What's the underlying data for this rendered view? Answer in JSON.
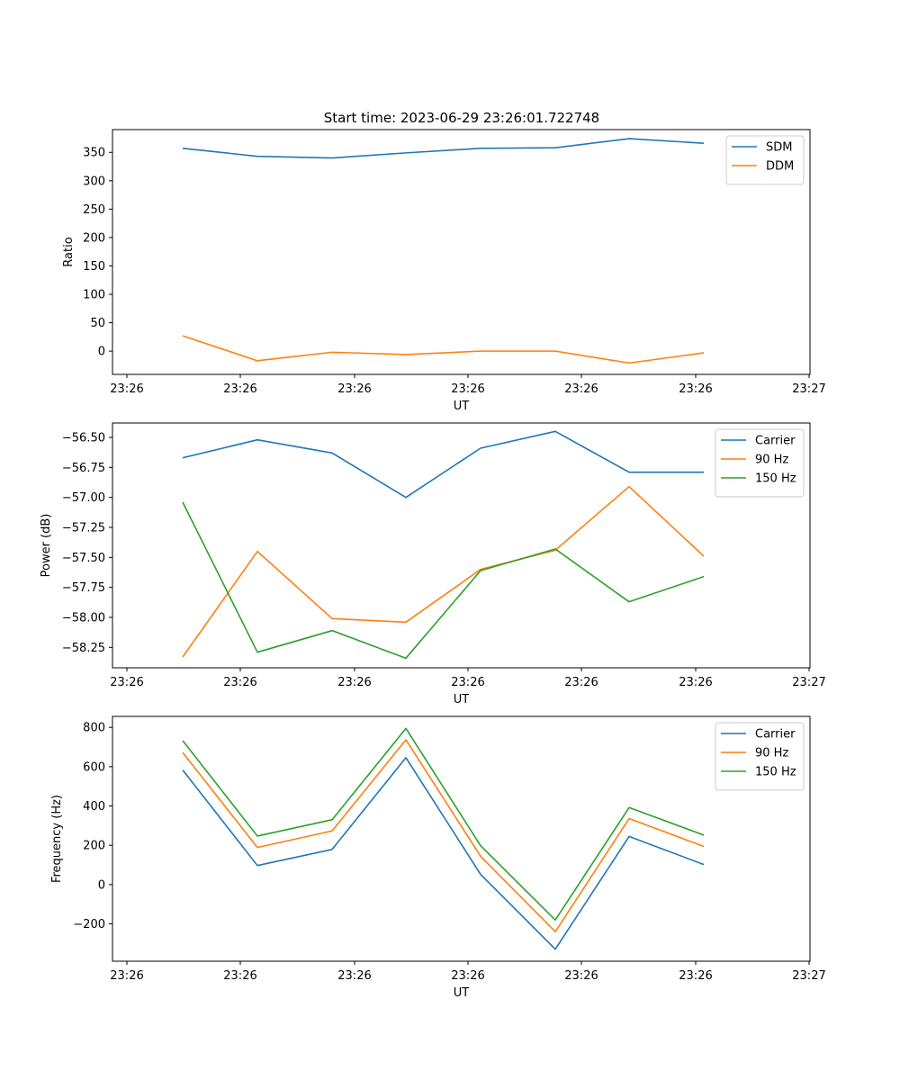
{
  "figure": {
    "title": "Start time: 2023-06-29 23:26:01.722748"
  },
  "chart_data": [
    {
      "type": "line",
      "title": "Start time: 2023-06-29 23:26:01.722748",
      "xlabel": "UT",
      "ylabel": "Ratio",
      "x_tick_labels": [
        "23:26",
        "23:26",
        "23:26",
        "23:26",
        "23:26",
        "23:26",
        "23:27"
      ],
      "y_ticks": [
        0,
        50,
        100,
        150,
        200,
        250,
        300,
        350
      ],
      "ylim": [
        -41,
        390
      ],
      "grid": false,
      "legend": "top-right",
      "series": [
        {
          "name": "SDM",
          "color": "#1f77b4",
          "values": [
            357,
            343,
            340,
            349,
            357,
            358,
            374,
            366
          ]
        },
        {
          "name": "DDM",
          "color": "#ff7f0e",
          "values": [
            27,
            -17,
            -2,
            -6,
            0,
            0,
            -21,
            -3
          ]
        }
      ]
    },
    {
      "type": "line",
      "title": "",
      "xlabel": "UT",
      "ylabel": "Power (dB)",
      "x_tick_labels": [
        "23:26",
        "23:26",
        "23:26",
        "23:26",
        "23:26",
        "23:26",
        "23:27"
      ],
      "y_ticks": [
        -58.25,
        -58.0,
        -57.75,
        -57.5,
        -57.25,
        -57.0,
        -56.75,
        -56.5
      ],
      "y_tick_labels": [
        "−58.25",
        "−58.00",
        "−57.75",
        "−57.50",
        "−57.25",
        "−57.00",
        "−56.75",
        "−56.50"
      ],
      "ylim": [
        -58.42,
        -56.38
      ],
      "grid": false,
      "legend": "top-right",
      "series": [
        {
          "name": "Carrier",
          "color": "#1f77b4",
          "values": [
            -56.67,
            -56.52,
            -56.63,
            -57.0,
            -56.59,
            -56.45,
            -56.79,
            -56.79
          ]
        },
        {
          "name": "90 Hz",
          "color": "#ff7f0e",
          "values": [
            -58.33,
            -57.45,
            -58.01,
            -58.04,
            -57.6,
            -57.44,
            -56.91,
            -57.49
          ]
        },
        {
          "name": "150 Hz",
          "color": "#2ca02c",
          "values": [
            -57.04,
            -58.29,
            -58.11,
            -58.34,
            -57.61,
            -57.43,
            -57.87,
            -57.66
          ]
        }
      ]
    },
    {
      "type": "line",
      "title": "",
      "xlabel": "UT",
      "ylabel": "Frequency (Hz)",
      "x_tick_labels": [
        "23:26",
        "23:26",
        "23:26",
        "23:26",
        "23:26",
        "23:26",
        "23:27"
      ],
      "y_ticks": [
        -200,
        0,
        200,
        400,
        600,
        800
      ],
      "y_tick_labels": [
        "−200",
        "0",
        "200",
        "400",
        "600",
        "800"
      ],
      "ylim": [
        -390,
        856
      ],
      "grid": false,
      "legend": "top-right",
      "series": [
        {
          "name": "Carrier",
          "color": "#1f77b4",
          "values": [
            583,
            97,
            179,
            646,
            52,
            -329,
            245,
            102
          ]
        },
        {
          "name": "90 Hz",
          "color": "#ff7f0e",
          "values": [
            672,
            189,
            273,
            737,
            144,
            -240,
            336,
            194
          ]
        },
        {
          "name": "150 Hz",
          "color": "#2ca02c",
          "values": [
            733,
            247,
            330,
            795,
            198,
            -180,
            392,
            252
          ]
        }
      ]
    }
  ]
}
